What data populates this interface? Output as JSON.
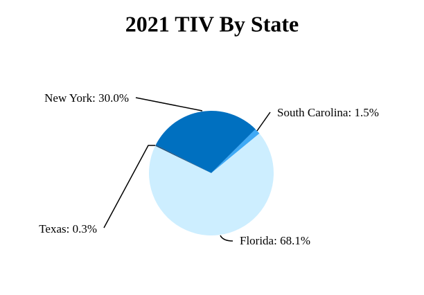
{
  "chart_data": {
    "type": "pie",
    "title": "2021 TIV By State",
    "values": [
      30.0,
      1.5,
      68.1,
      0.3
    ],
    "value_labels": [
      "New York: 30.0%",
      "South Carolina: 1.5%",
      "Florida: 68.1%",
      "Texas: 0.3%"
    ],
    "colors": [
      "#0070c0",
      "#3fa9f5",
      "#cdeeff",
      "#1f4e79"
    ]
  }
}
